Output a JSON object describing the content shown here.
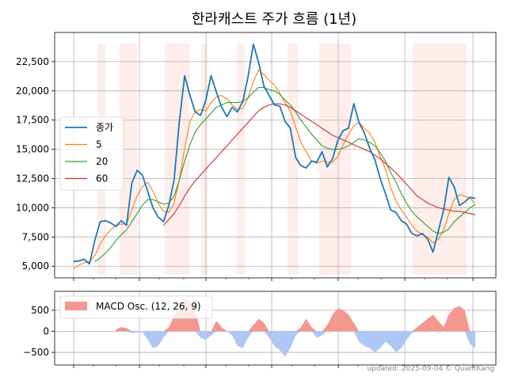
{
  "chart_data": [
    {
      "type": "line",
      "title": "한라캐스트 주가 흐름 (1년)",
      "ylim": [
        4000,
        25000
      ],
      "yticks": [
        5000,
        7500,
        10000,
        12500,
        15000,
        17500,
        20000,
        22500
      ],
      "ytick_labels": [
        "5,000",
        "7,500",
        "10,000",
        "12,500",
        "15,000",
        "17,500",
        "20,000",
        "22,500"
      ],
      "grid": true,
      "legend_position": "left",
      "shaded_bands_color": "#fbe2dd",
      "series": [
        {
          "name": "종가",
          "color": "#1f77b4",
          "values": [
            5400,
            5450,
            5600,
            5200,
            7200,
            8800,
            8900,
            8700,
            8400,
            8900,
            8500,
            12100,
            13200,
            12800,
            11400,
            10000,
            9200,
            8800,
            10200,
            12400,
            17400,
            21300,
            19600,
            18200,
            17900,
            19200,
            21300,
            19900,
            18600,
            17800,
            18600,
            18200,
            19100,
            21200,
            24000,
            22400,
            20400,
            19600,
            18800,
            18700,
            17400,
            16800,
            14300,
            13600,
            13400,
            14000,
            13900,
            14800,
            13500,
            14200,
            15800,
            16600,
            16800,
            18900,
            17300,
            16400,
            15100,
            14100,
            12500,
            11200,
            9800,
            9600,
            8900,
            8600,
            7800,
            7600,
            7800,
            7300,
            6200,
            8000,
            9800,
            12600,
            11800,
            10200,
            10500,
            10900,
            10800
          ]
        },
        {
          "name": "5",
          "color": "#ff7f0e",
          "values": [
            4800,
            5100,
            5300,
            5400,
            5900,
            6900,
            7600,
            8100,
            8500,
            8600,
            8600,
            9800,
            11000,
            11800,
            12200,
            11400,
            10400,
            9700,
            9600,
            10400,
            12400,
            15100,
            17400,
            18200,
            18400,
            18300,
            19000,
            19500,
            19600,
            19300,
            18800,
            18400,
            18500,
            19400,
            20800,
            21800,
            21400,
            20900,
            20500,
            19800,
            19000,
            18300,
            16900,
            15600,
            14800,
            14000,
            13800,
            14000,
            13900,
            13900,
            14400,
            15400,
            16300,
            17000,
            17300,
            16800,
            16400,
            15600,
            14400,
            13300,
            11700,
            10600,
            9800,
            9200,
            8500,
            8000,
            7700,
            7500,
            7000,
            7300,
            8100,
            9500,
            10700,
            11100,
            11000,
            10800,
            10400
          ]
        },
        {
          "name": "20",
          "color": "#2ca02c",
          "values": [
            null,
            null,
            null,
            null,
            5400,
            5700,
            6100,
            6600,
            7200,
            7700,
            8100,
            8800,
            9500,
            10200,
            10700,
            10700,
            10500,
            10300,
            10400,
            11000,
            12400,
            14000,
            15400,
            16500,
            17100,
            17600,
            18100,
            18600,
            18800,
            19000,
            19000,
            19000,
            19100,
            19400,
            19900,
            20300,
            20300,
            20100,
            20000,
            19700,
            19200,
            18800,
            18200,
            17500,
            16900,
            16300,
            15800,
            15300,
            15100,
            15000,
            15000,
            15100,
            15300,
            15600,
            15900,
            15800,
            15600,
            15300,
            14700,
            14000,
            13000,
            12200,
            11200,
            10400,
            9700,
            9200,
            8800,
            8400,
            8000,
            7800,
            7900,
            8200,
            8800,
            9200,
            9600,
            10000,
            10300
          ]
        },
        {
          "name": "60",
          "color": "#d62728",
          "values": [
            null,
            null,
            null,
            null,
            null,
            null,
            null,
            null,
            null,
            null,
            null,
            null,
            null,
            null,
            null,
            null,
            null,
            8500,
            9000,
            9500,
            10200,
            11000,
            11700,
            12300,
            12800,
            13300,
            13800,
            14300,
            14800,
            15300,
            15800,
            16300,
            16800,
            17300,
            17800,
            18300,
            18600,
            18800,
            18900,
            18900,
            18800,
            18600,
            18300,
            18000,
            17700,
            17400,
            17100,
            16800,
            16500,
            16200,
            16000,
            15800,
            15600,
            15400,
            15200,
            15000,
            14800,
            14500,
            14200,
            13800,
            13400,
            13000,
            12500,
            12000,
            11500,
            11000,
            10700,
            10400,
            10200,
            10000,
            9900,
            9800,
            9700,
            9700,
            9600,
            9500,
            9400
          ]
        }
      ]
    },
    {
      "type": "area",
      "ylim": [
        -800,
        950
      ],
      "yticks": [
        -500,
        0,
        500
      ],
      "ytick_labels": [
        "−500",
        "0",
        "500"
      ],
      "grid": true,
      "legend_position": "top-left",
      "series": [
        {
          "name": "MACD Osc. (12, 26, 9)",
          "positive_color": "#f4978e",
          "negative_color": "#aec7f4",
          "values": [
            null,
            null,
            null,
            null,
            null,
            null,
            null,
            null,
            50,
            100,
            80,
            -40,
            -30,
            -20,
            -200,
            -400,
            -350,
            -150,
            100,
            350,
            550,
            800,
            700,
            500,
            -150,
            -200,
            -100,
            250,
            100,
            0,
            -100,
            -350,
            -400,
            -150,
            150,
            300,
            200,
            -150,
            -350,
            -450,
            -600,
            -400,
            -100,
            100,
            300,
            100,
            -150,
            -100,
            150,
            400,
            550,
            500,
            400,
            200,
            -250,
            -350,
            -400,
            -500,
            -400,
            -250,
            -350,
            -500,
            -400,
            -200,
            -50,
            100,
            200,
            300,
            400,
            250,
            100,
            400,
            550,
            600,
            500,
            -300,
            -400
          ]
        }
      ]
    }
  ],
  "footer": "updated: 2025-09-04 © QuantKang"
}
